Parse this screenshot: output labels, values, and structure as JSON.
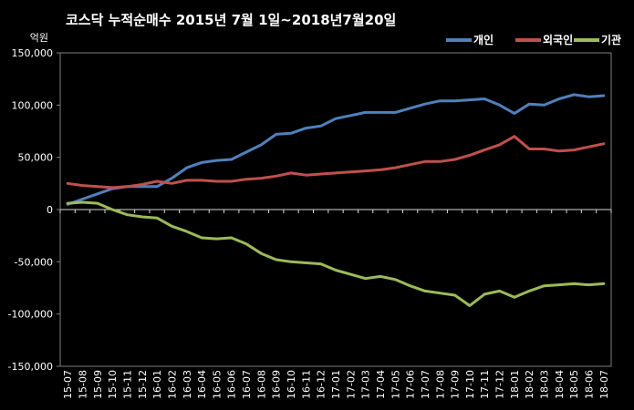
{
  "chart_data": {
    "type": "line",
    "title": "코스닥 누적순매수 2015년 7월 1일~2018년7월20일",
    "unit_label": "억원",
    "ylim": [
      -150000,
      150000
    ],
    "yticks": [
      150000,
      100000,
      50000,
      0,
      -50000,
      -100000,
      -150000
    ],
    "ytick_labels": [
      "150,000",
      "100,000",
      "50,000",
      "0",
      "-50,000",
      "-100,000",
      "-150,000"
    ],
    "categories": [
      "15-07",
      "15-08",
      "15-09",
      "15-10",
      "15-11",
      "15-12",
      "16-01",
      "16-02",
      "16-03",
      "16-04",
      "16-05",
      "16-06",
      "16-07",
      "16-08",
      "16-09",
      "16-10",
      "16-11",
      "16-12",
      "17-01",
      "17-02",
      "17-03",
      "17-04",
      "17-05",
      "17-06",
      "17-07",
      "17-08",
      "17-09",
      "17-10",
      "17-11",
      "17-12",
      "18-01",
      "18-02",
      "18-03",
      "18-04",
      "18-05",
      "18-06",
      "18-07"
    ],
    "legend_position": "top-right",
    "grid": false,
    "series": [
      {
        "name": "개인",
        "color": "#4F81BD",
        "values": [
          5000,
          10000,
          15000,
          20000,
          22000,
          22000,
          22000,
          30000,
          40000,
          45000,
          47000,
          48000,
          55000,
          62000,
          72000,
          73000,
          78000,
          80000,
          87000,
          90000,
          93000,
          93000,
          93000,
          97000,
          101000,
          104000,
          104000,
          105000,
          106000,
          100000,
          92000,
          101000,
          100000,
          106000,
          110000,
          108000,
          109000
        ]
      },
      {
        "name": "외국인",
        "color": "#C0504D",
        "values": [
          25000,
          23000,
          22000,
          21000,
          22000,
          24000,
          27000,
          25000,
          28000,
          28000,
          27000,
          27000,
          29000,
          30000,
          32000,
          35000,
          33000,
          34000,
          35000,
          36000,
          37000,
          38000,
          40000,
          43000,
          46000,
          46000,
          48000,
          52000,
          57000,
          62000,
          70000,
          58000,
          58000,
          56000,
          57000,
          60000,
          63000
        ]
      },
      {
        "name": "기관",
        "color": "#9BBB59",
        "values": [
          6000,
          7000,
          6000,
          0,
          -5000,
          -7000,
          -8000,
          -16000,
          -21000,
          -27000,
          -28000,
          -27000,
          -33000,
          -42000,
          -48000,
          -50000,
          -51000,
          -52000,
          -58000,
          -62000,
          -66000,
          -64000,
          -67000,
          -73000,
          -78000,
          -80000,
          -82000,
          -92000,
          -81000,
          -78000,
          -84000,
          -78000,
          -73000,
          -72000,
          -71000,
          -72000,
          -71000
        ]
      }
    ]
  }
}
